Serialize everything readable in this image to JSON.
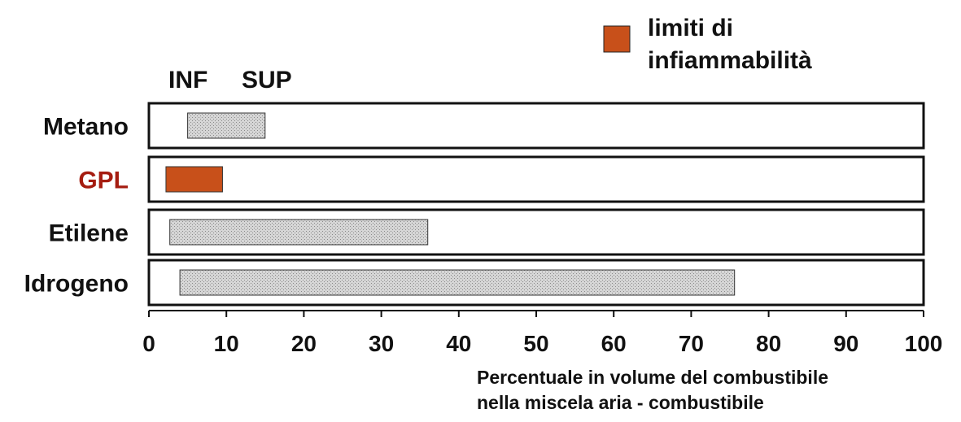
{
  "chart_data": {
    "type": "bar",
    "orientation": "horizontal",
    "categories": [
      "Metano",
      "GPL",
      "Etilene",
      "Idrogeno"
    ],
    "series": [
      {
        "name": "limiti di infiammabilità",
        "lower": [
          5,
          2.2,
          2.7,
          4
        ],
        "upper": [
          15,
          9.5,
          36,
          75.6
        ]
      }
    ],
    "column_headers": [
      "INF",
      "SUP"
    ],
    "legend": {
      "label_line1": "limiti di",
      "label_line2": "infiammabilità",
      "color": "#c8501a",
      "placement": "top-right"
    },
    "xlim": [
      0,
      100
    ],
    "xticks": [
      0,
      10,
      20,
      30,
      40,
      50,
      60,
      70,
      80,
      90,
      100
    ],
    "xlabel_line1": "Percentuale in volume del combustibile",
    "xlabel_line2": "nella miscela aria - combustibile",
    "highlight_category": "GPL",
    "colors": {
      "highlight_fill": "#c8501a",
      "highlight_label": "#a51c10",
      "band_fill": "#cfcfcf",
      "track_border": "#111111"
    }
  }
}
